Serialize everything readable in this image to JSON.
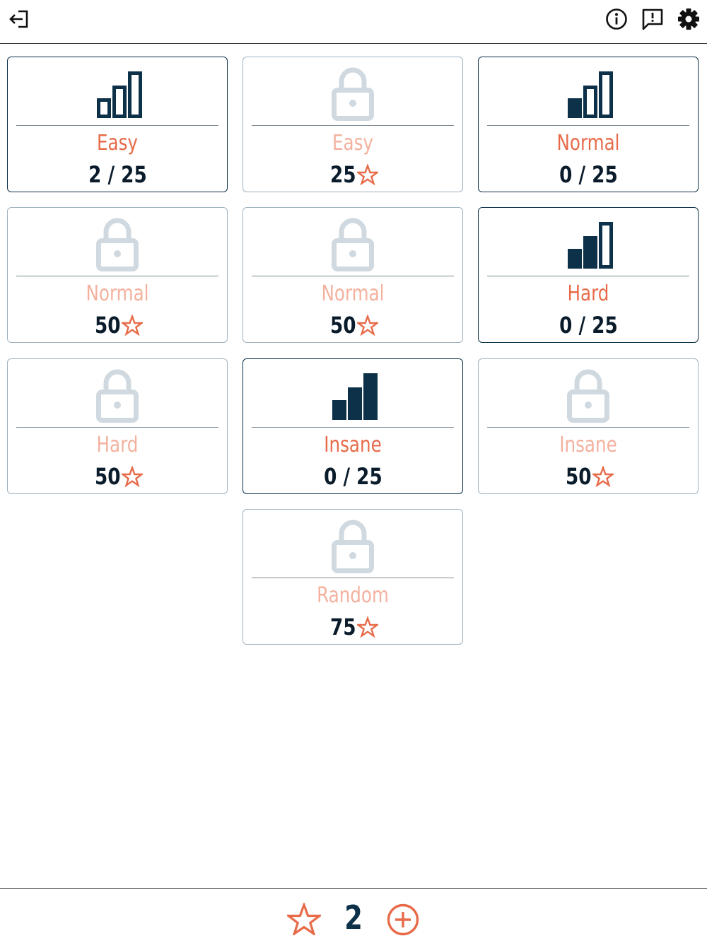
{
  "topbar": {
    "exit_icon": "exit-icon",
    "info_icon": "info-icon",
    "feedback_icon": "feedback-icon",
    "settings_icon": "gear-icon"
  },
  "colors": {
    "navy": "#0c3149",
    "orange": "#e76b49",
    "locked_orange": "#f4b19e",
    "locked_gray": "#cfd9df"
  },
  "levels": [
    {
      "name": "Easy",
      "status": "2 / 25",
      "locked": false,
      "bars_filled": 0
    },
    {
      "name": "Easy",
      "status": "25",
      "locked": true
    },
    {
      "name": "Normal",
      "status": "0 / 25",
      "locked": false,
      "bars_filled": 1
    },
    {
      "name": "Normal",
      "status": "50",
      "locked": true
    },
    {
      "name": "Normal",
      "status": "50",
      "locked": true
    },
    {
      "name": "Hard",
      "status": "0 / 25",
      "locked": false,
      "bars_filled": 2
    },
    {
      "name": "Hard",
      "status": "50",
      "locked": true
    },
    {
      "name": "Insane",
      "status": "0 / 25",
      "locked": false,
      "bars_filled": 3
    },
    {
      "name": "Insane",
      "status": "50",
      "locked": true
    },
    {
      "name": "Random",
      "status": "75",
      "locked": true
    }
  ],
  "footer": {
    "star_count": "2",
    "star_icon": "star-icon",
    "add_icon": "add-circle-icon"
  }
}
